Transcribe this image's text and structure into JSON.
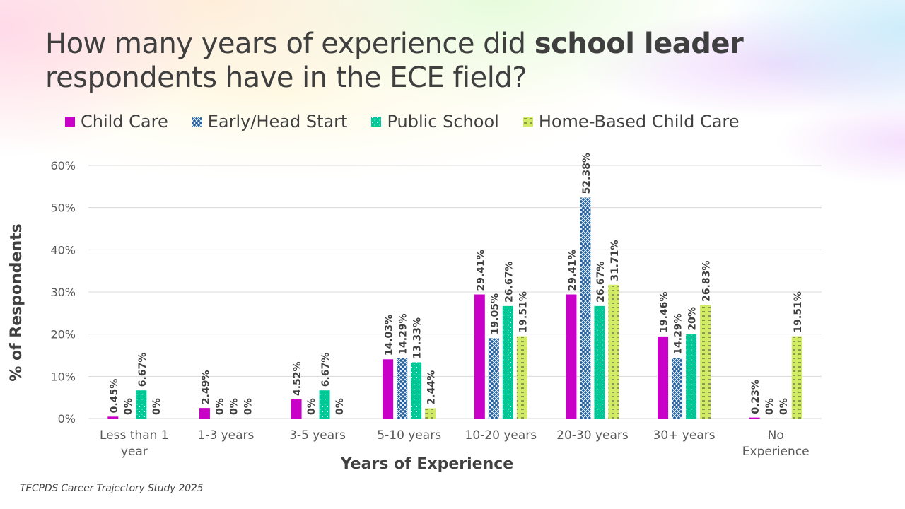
{
  "slide": {
    "title_parts": {
      "prefix": "How many years of experience did ",
      "emphasis": "school leader",
      "suffix": " respondents have in the ECE field?"
    },
    "source": "TECPDS Career Trajectory Study 2025"
  },
  "chart_data": {
    "type": "bar",
    "title": "How many years of experience did school leader respondents have in the ECE field?",
    "xlabel": "Years of Experience",
    "ylabel": "% of Respondents",
    "ylim": [
      0,
      60
    ],
    "yticks": [
      "0%",
      "10%",
      "20%",
      "30%",
      "40%",
      "50%",
      "60%"
    ],
    "ytick_values": [
      0,
      10,
      20,
      30,
      40,
      50,
      60
    ],
    "grid": true,
    "legend_position": "top",
    "categories": [
      "Less than 1 year",
      "1-3 years",
      "3-5 years",
      "5-10 years",
      "10-20 years",
      "20-30 years",
      "30+ years",
      "No Experience"
    ],
    "category_lines": [
      [
        "Less than 1",
        "year"
      ],
      [
        "1-3 years"
      ],
      [
        "3-5 years"
      ],
      [
        "5-10 years"
      ],
      [
        "10-20 years"
      ],
      [
        "20-30 years"
      ],
      [
        "30+ years"
      ],
      [
        "No",
        "Experience"
      ]
    ],
    "series": [
      {
        "name": "Child Care",
        "color": "#c800c8",
        "pattern": "solid",
        "values": [
          0.45,
          2.49,
          4.52,
          14.03,
          29.41,
          29.41,
          19.46,
          0.23
        ],
        "labels": [
          "0.45%",
          "2.49%",
          "4.52%",
          "14.03%",
          "29.41%",
          "29.41%",
          "19.46%",
          "0.23%"
        ]
      },
      {
        "name": "Early/Head Start",
        "color": "#1f5fa0",
        "pattern": "crosshatch",
        "values": [
          0,
          0,
          0,
          14.29,
          19.05,
          52.38,
          14.29,
          0
        ],
        "labels": [
          "0%",
          "0%",
          "0%",
          "14.29%",
          "19.05%",
          "52.38%",
          "14.29%",
          "0%"
        ]
      },
      {
        "name": "Public School",
        "color": "#00c896",
        "pattern": "dots",
        "values": [
          6.67,
          0,
          6.67,
          13.33,
          26.67,
          26.67,
          20,
          0
        ],
        "labels": [
          "6.67%",
          "0%",
          "6.67%",
          "13.33%",
          "26.67%",
          "26.67%",
          "20%",
          "0%"
        ]
      },
      {
        "name": "Home-Based Child Care",
        "color": "#d2eb64",
        "pattern": "dashes",
        "values": [
          0,
          0,
          0,
          2.44,
          19.51,
          31.71,
          26.83,
          19.51
        ],
        "labels": [
          "0%",
          "0%",
          "0%",
          "2.44%",
          "19.51%",
          "31.71%",
          "26.83%",
          "19.51%"
        ]
      }
    ]
  }
}
